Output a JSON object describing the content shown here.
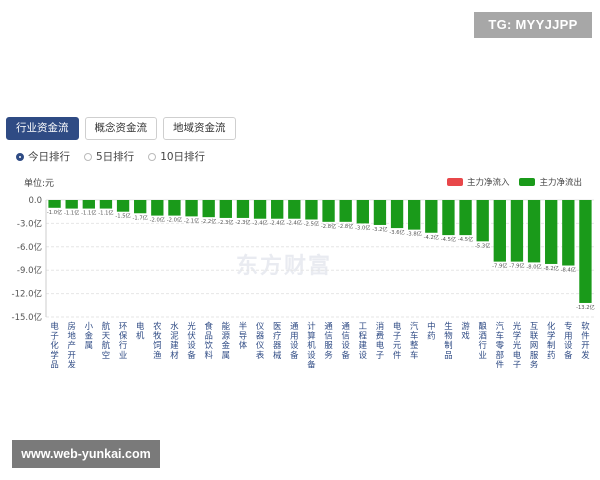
{
  "badge": {
    "text": "TG: MYYJJPP"
  },
  "tabs": [
    {
      "label": "行业资金流",
      "active": true
    },
    {
      "label": "概念资金流",
      "active": false
    },
    {
      "label": "地域资金流",
      "active": false
    }
  ],
  "radios": [
    {
      "label": "今日排行",
      "checked": true
    },
    {
      "label": "5日排行",
      "checked": false
    },
    {
      "label": "10日排行",
      "checked": false
    }
  ],
  "legend": {
    "inflow": {
      "label": "主力净流入",
      "color": "#e8474a"
    },
    "outflow": {
      "label": "主力净流出",
      "color": "#1a9a1a"
    }
  },
  "watermark_logo": "东方财富",
  "footer_watermark": "www.web-yunkai.com",
  "chart_data": {
    "type": "bar",
    "unit_label": "单位:元",
    "ylim": [
      -15,
      0
    ],
    "yticks": [
      "0.0",
      "-3.0亿",
      "-6.0亿",
      "-9.0亿",
      "-12.0亿",
      "-15.0亿"
    ],
    "ytick_values": [
      0,
      -3,
      -6,
      -9,
      -12,
      -15
    ],
    "grid": true,
    "legend_position": "top-right",
    "categories": [
      "电子化学品",
      "房地产开发",
      "小金属",
      "航天航空",
      "环保行业",
      "电机",
      "农牧饲渔",
      "水泥建材",
      "光伏设备",
      "食品饮料",
      "能源金属",
      "半导体",
      "仪器仪表",
      "医疗器械",
      "通用设备",
      "计算机设备",
      "通信服务",
      "通信设备",
      "工程建设",
      "消费电子",
      "电子元件",
      "汽车整车",
      "中药",
      "生物制品",
      "游戏",
      "酿酒行业",
      "汽车零部件",
      "光学光电子",
      "互联网服务",
      "化学制药",
      "专用设备",
      "软件开发"
    ],
    "values": [
      -1.0,
      -1.1,
      -1.1,
      -1.1,
      -1.5,
      -1.7,
      -2.0,
      -2.0,
      -2.1,
      -2.2,
      -2.3,
      -2.3,
      -2.4,
      -2.4,
      -2.4,
      -2.5,
      -2.8,
      -2.8,
      -3.0,
      -3.2,
      -3.6,
      -3.8,
      -4.2,
      -4.5,
      -4.5,
      -5.3,
      -7.9,
      -7.9,
      -8.0,
      -8.2,
      -8.4,
      -13.2
    ],
    "data_labels": [
      "-1.0亿",
      "-1.1亿",
      "-1.1亿",
      "-1.1亿",
      "-1.5亿",
      "-1.7亿",
      "-2.0亿",
      "-2.0亿",
      "-2.1亿",
      "-2.2亿",
      "-2.3亿",
      "-2.3亿",
      "-2.4亿",
      "-2.4亿",
      "-2.4亿",
      "-2.5亿",
      "-2.8亿",
      "-2.8亿",
      "-3.0亿",
      "-3.2亿",
      "-3.6亿",
      "-3.8亿",
      "-4.2亿",
      "-4.5亿",
      "-4.5亿",
      "-5.3亿",
      "-7.9亿",
      "-7.9亿",
      "-8.0亿",
      "-8.2亿",
      "-8.4亿",
      "-13.2亿"
    ],
    "bar_color": "#1a9a1a"
  }
}
